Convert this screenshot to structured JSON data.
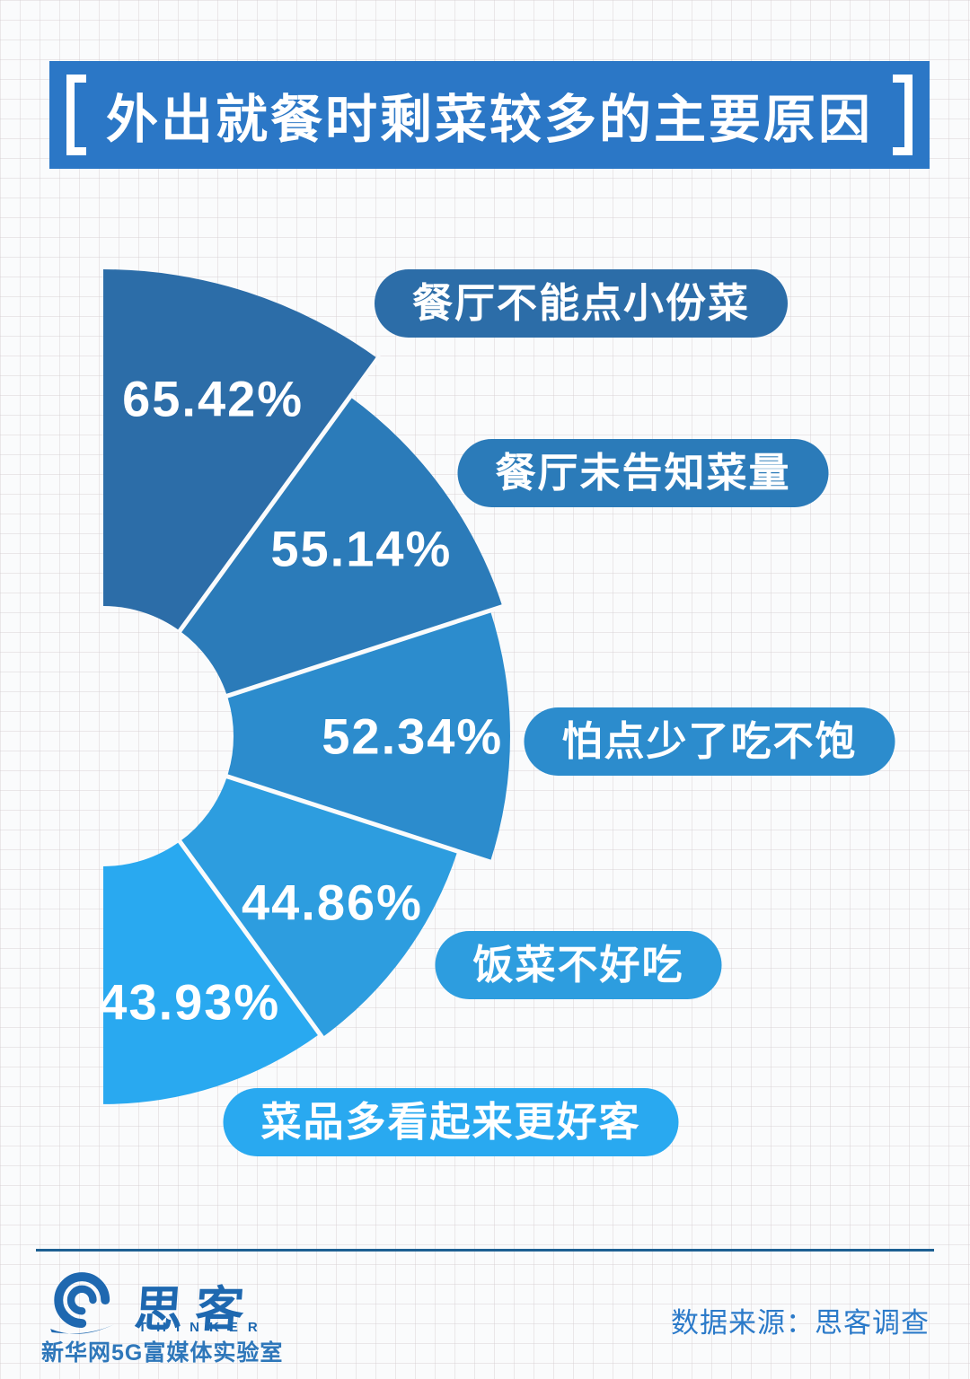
{
  "header": {
    "title": "外出就餐时剩菜较多的主要原因"
  },
  "chart_data": {
    "type": "fan",
    "title": "外出就餐时剩菜较多的主要原因",
    "categories": [
      "餐厅不能点小份菜",
      "餐厅未告知菜量",
      "怕点少了吃不饱",
      "饭菜不好吃",
      "菜品多看起来更好客"
    ],
    "values": [
      65.42,
      55.14,
      52.34,
      44.86,
      43.93
    ],
    "value_labels": [
      "65.42%",
      "55.14%",
      "52.34%",
      "44.86%",
      "43.93%"
    ],
    "colors": [
      "#2C6DA8",
      "#2B7BB9",
      "#2C8CCD",
      "#2D9DDF",
      "#29A9F0"
    ],
    "unit": "%",
    "angle_start_deg": 90,
    "angle_end_deg": -90,
    "segment_angle_deg": 36,
    "layout_hint": "half-fan opening to the right; donut hole at center-left; wedge radius grows with value; white percentage label inside each wedge; rounded category pill in matching color beside each wedge"
  },
  "footer": {
    "brand_cn": "思客",
    "brand_en": "THINKER",
    "brand_sub": "新华网5G富媒体实验室",
    "source": "数据来源：思客调查"
  }
}
